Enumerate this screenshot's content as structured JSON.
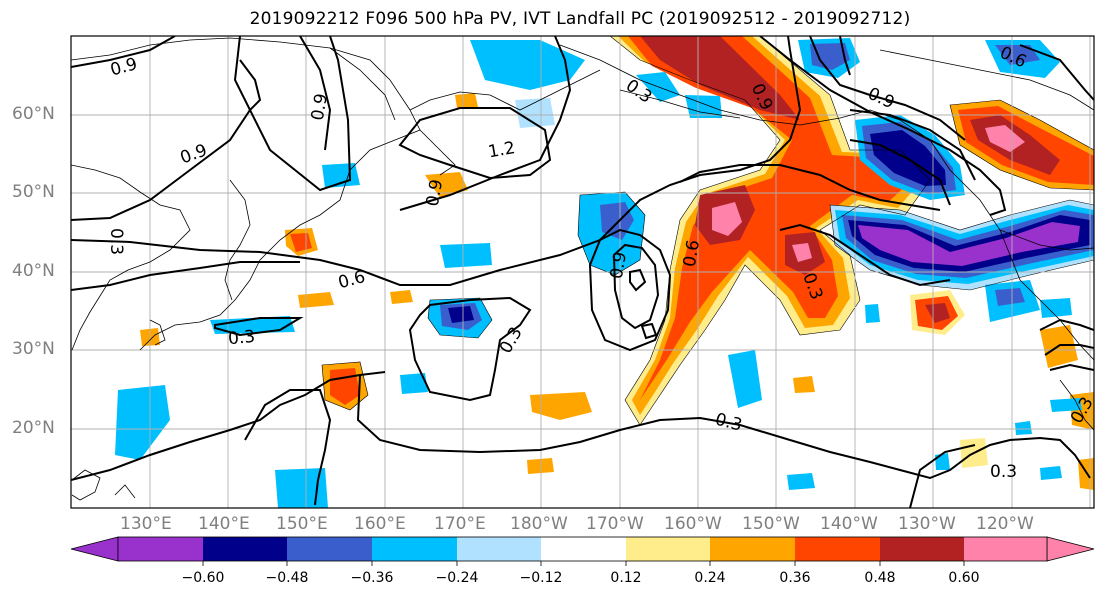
{
  "title": "2019092212 F096 500 hPa PV, IVT Landfall PC (2019092512 - 2019092712)",
  "lat_labels": [
    "60°N",
    "50°N",
    "40°N",
    "30°N",
    "20°N"
  ],
  "lon_labels": [
    "130°E",
    "140°E",
    "150°E",
    "160°E",
    "170°E",
    "180°W",
    "170°W",
    "160°W",
    "150°W",
    "140°W",
    "130°W",
    "120°W"
  ],
  "colorbar": {
    "tick_labels": [
      "−0.60",
      "−0.48",
      "−0.36",
      "−0.24",
      "−0.12",
      "0.12",
      "0.24",
      "0.36",
      "0.48",
      "0.60"
    ],
    "colors": [
      "#9932cc",
      "#00008b",
      "#3a5fcd",
      "#00bfff",
      "#b0e2ff",
      "#ffffff",
      "#ffec8b",
      "#ffa500",
      "#ff4500",
      "#b22222",
      "#ff82ab"
    ]
  },
  "contour_labels": [
    "0.9",
    "0.9",
    "1.2",
    "0.9",
    "0.3",
    "0.6",
    "0.3",
    "0.3",
    "0.9",
    "0.6",
    "0.3",
    "0.9",
    "0.6",
    "0.3",
    "0.9",
    "0.3",
    "0.9",
    "0.3",
    "0.3"
  ]
}
